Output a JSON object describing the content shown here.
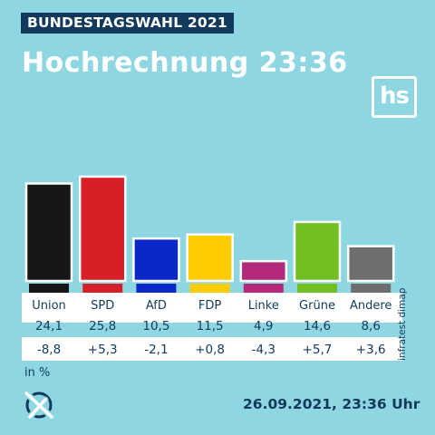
{
  "header": {
    "tag": "BUNDESTAGSWAHL 2021",
    "title": "Hochrechnung 23:36",
    "logo_text": "hs"
  },
  "footer": {
    "unit": "in %",
    "source": "infratest dimap",
    "timestamp": "26.09.2021, 23:36 Uhr",
    "icon": "ballot-cross-icon"
  },
  "colors": {
    "background": "#8fd6e3",
    "text": "#123a5c",
    "table_row": "#ffffff"
  },
  "chart_data": {
    "type": "bar",
    "categories": [
      "Union",
      "SPD",
      "AfD",
      "FDP",
      "Linke",
      "Grüne",
      "Andere"
    ],
    "values": [
      24.1,
      25.8,
      10.5,
      11.5,
      4.9,
      14.6,
      8.6
    ],
    "value_labels": [
      "24,1",
      "25,8",
      "10,5",
      "11,5",
      "4,9",
      "14,6",
      "8,6"
    ],
    "changes": [
      -8.8,
      5.3,
      -2.1,
      0.8,
      -4.3,
      5.7,
      3.6
    ],
    "change_labels": [
      "-8,8",
      "+5,3",
      "-2,1",
      "+0,8",
      "-4,3",
      "+5,7",
      "+3,6"
    ],
    "colors": [
      "#161616",
      "#d61f26",
      "#0a28c8",
      "#ffcc00",
      "#b5297c",
      "#72bf24",
      "#6e6e6e"
    ],
    "ylim": [
      0,
      30
    ]
  }
}
